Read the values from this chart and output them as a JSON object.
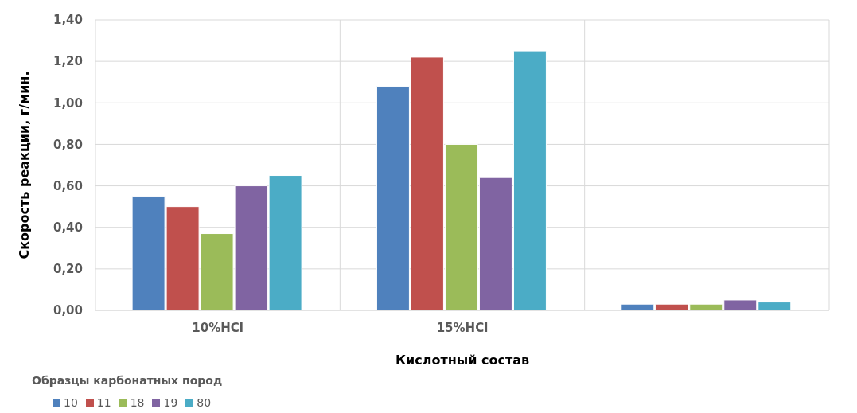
{
  "chart_data": {
    "type": "bar",
    "xlabel": "Кислотный состав",
    "ylabel": "Скорость реакции, г/мин.",
    "legend_title": "Образцы карбонатных пород",
    "categories": [
      "10%HCl",
      "15%HCl",
      null
    ],
    "series": [
      {
        "name": "10",
        "color": "#4f81bd",
        "values": [
          0.55,
          1.08,
          0.03
        ]
      },
      {
        "name": "11",
        "color": "#c0504d",
        "values": [
          0.5,
          1.22,
          0.03
        ]
      },
      {
        "name": "18",
        "color": "#9bbb59",
        "values": [
          0.37,
          0.8,
          0.03
        ]
      },
      {
        "name": "19",
        "color": "#8064a2",
        "values": [
          0.6,
          0.64,
          0.05
        ]
      },
      {
        "name": "80",
        "color": "#4bacc6",
        "values": [
          0.65,
          1.25,
          0.04
        ]
      }
    ],
    "ylim": [
      0,
      1.4
    ],
    "yticks": [
      {
        "value": 0,
        "label": "0,00"
      },
      {
        "value": 0.2,
        "label": "0,20"
      },
      {
        "value": 0.4,
        "label": "0,40"
      },
      {
        "value": 0.6,
        "label": "0,60"
      },
      {
        "value": 0.8,
        "label": "0,80"
      },
      {
        "value": 1,
        "label": "1,00"
      },
      {
        "value": 1.2,
        "label": "1,20"
      },
      {
        "value": 1.4,
        "label": "1,40"
      }
    ],
    "grid": true,
    "legend": "bottom left"
  }
}
